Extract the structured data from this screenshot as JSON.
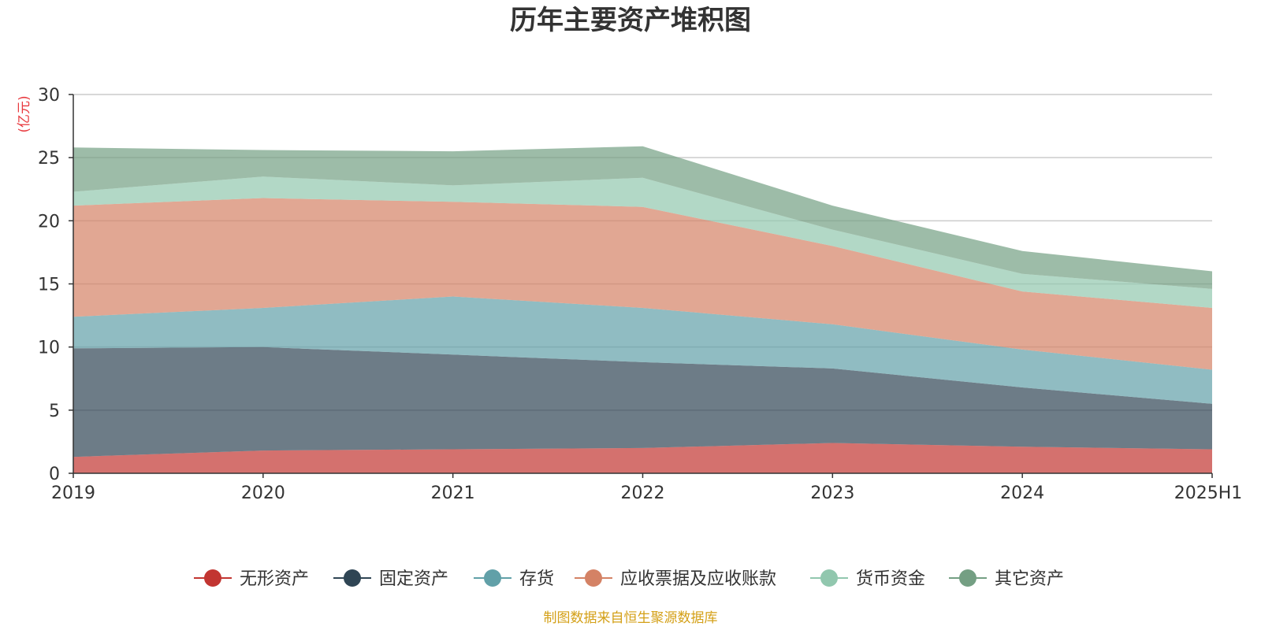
{
  "chart_data": {
    "type": "area",
    "stacked": true,
    "title": "历年主要资产堆积图",
    "ylabel": "(亿元)",
    "ylim": [
      0,
      30
    ],
    "yticks": [
      0,
      5,
      10,
      15,
      20,
      25,
      30
    ],
    "categories": [
      "2019",
      "2020",
      "2021",
      "2022",
      "2023",
      "2024",
      "2025H1"
    ],
    "grid": true,
    "legend_position": "bottom",
    "series": [
      {
        "name": "无形资产",
        "color": "#c23531",
        "values": [
          1.3,
          1.8,
          1.9,
          2.0,
          2.4,
          2.1,
          1.9
        ]
      },
      {
        "name": "固定资产",
        "color": "#2f4554",
        "values": [
          8.6,
          8.2,
          7.5,
          6.8,
          5.9,
          4.7,
          3.6
        ]
      },
      {
        "name": "存货",
        "color": "#61a0a8",
        "values": [
          2.5,
          3.1,
          4.6,
          4.3,
          3.5,
          3.0,
          2.7
        ]
      },
      {
        "name": "应收票据及应收账款",
        "color": "#d48265",
        "values": [
          8.8,
          8.7,
          7.5,
          8.0,
          6.2,
          4.6,
          4.9
        ]
      },
      {
        "name": "货币资金",
        "color": "#91c7ae",
        "values": [
          1.1,
          1.7,
          1.3,
          2.3,
          1.3,
          1.4,
          1.5
        ]
      },
      {
        "name": "其它资产",
        "color": "#749f83",
        "values": [
          3.5,
          2.1,
          2.7,
          2.5,
          1.9,
          1.8,
          1.4
        ]
      }
    ],
    "source": "制图数据来自恒生聚源数据库"
  }
}
